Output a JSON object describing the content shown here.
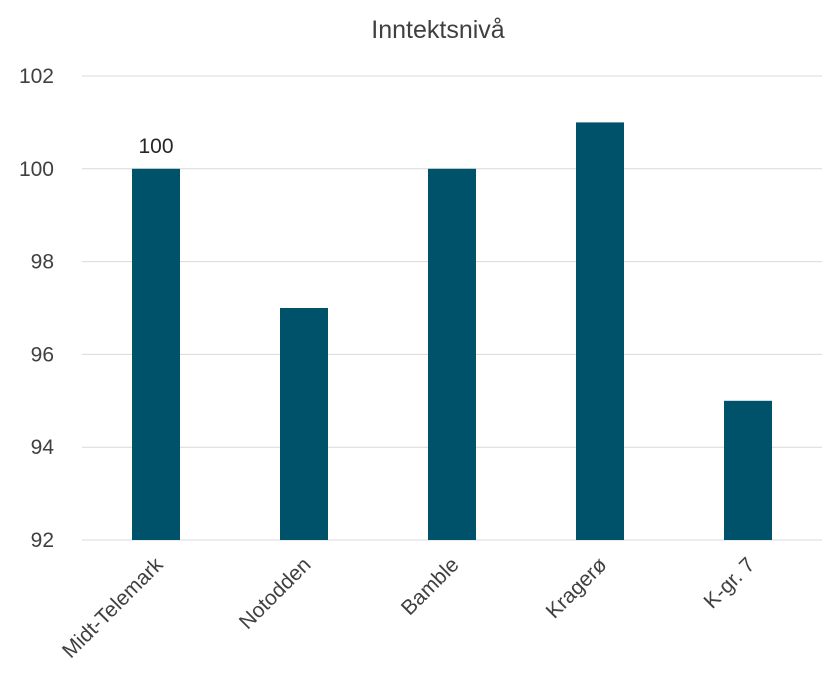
{
  "chart_data": {
    "type": "bar",
    "title": "Inntektsnivå",
    "xlabel": "",
    "ylabel": "",
    "categories": [
      "Midt-Telemark",
      "Notodden",
      "Bamble",
      "Kragerø",
      "K-gr. 7"
    ],
    "values": [
      100,
      97,
      100,
      101,
      95
    ],
    "ylim": [
      92,
      102
    ],
    "yticks": [
      92,
      94,
      96,
      98,
      100,
      102
    ],
    "data_labels": [
      {
        "index": 0,
        "text": "100"
      }
    ],
    "grid": true,
    "legend": "none",
    "bar_color": "#00526B"
  }
}
